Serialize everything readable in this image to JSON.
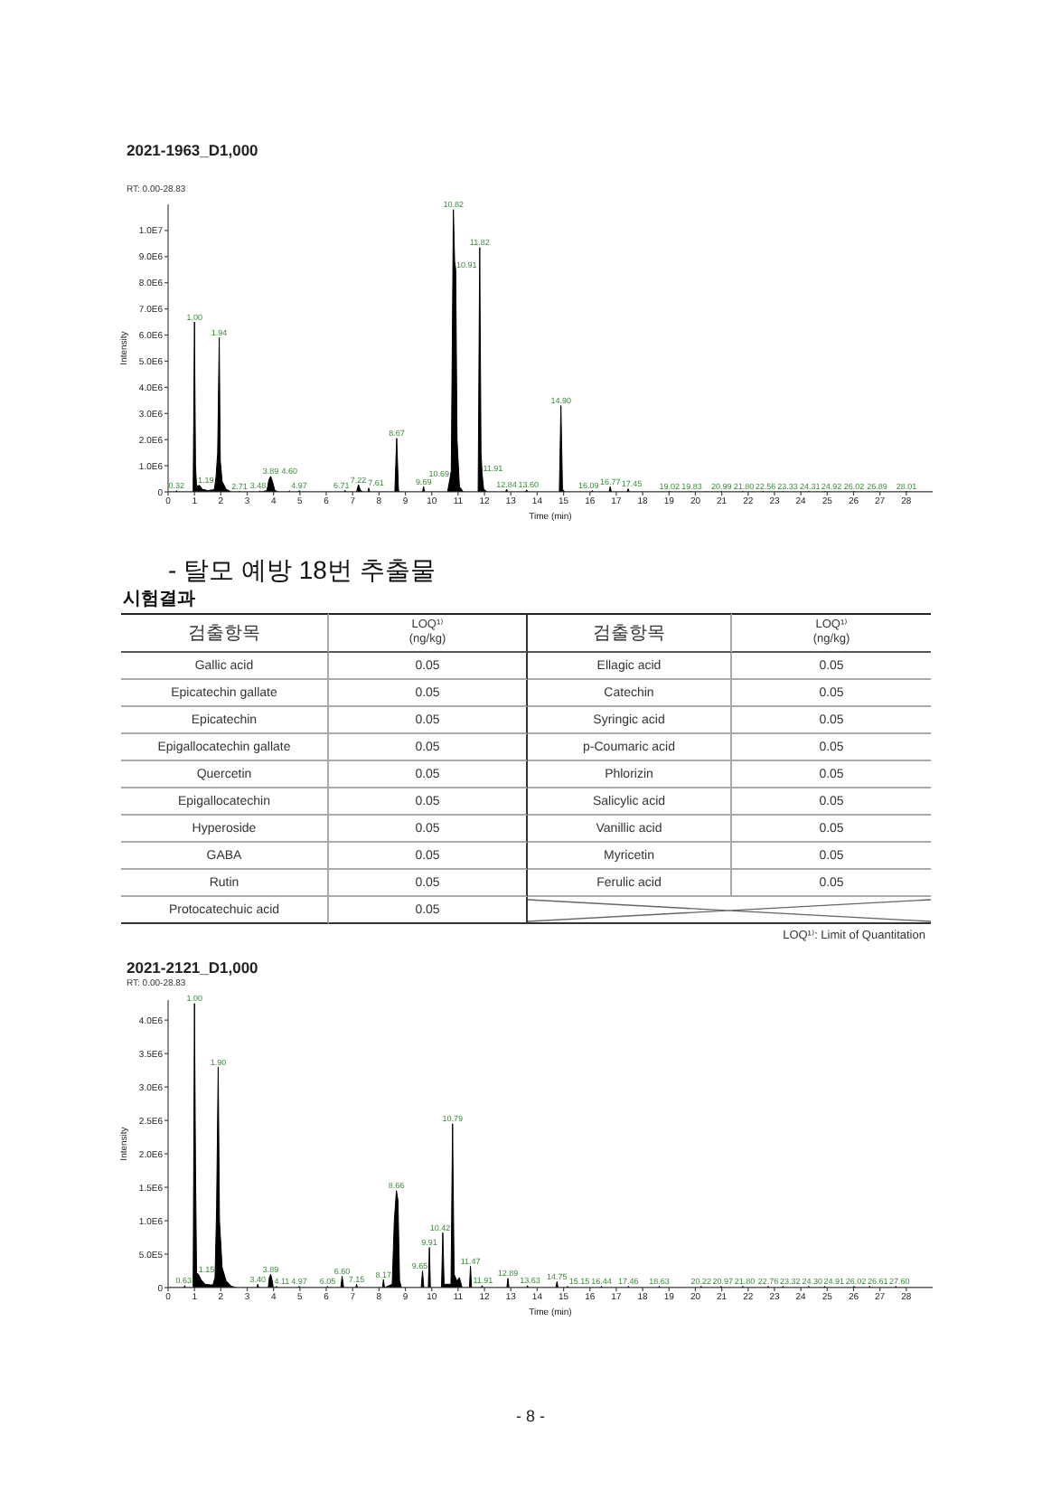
{
  "chart_data": [
    {
      "type": "area",
      "title": "2021-1963_D1,000",
      "subtitle": "RT: 0.00-28.83",
      "xlabel": "Time (min)",
      "ylabel": "Intensity",
      "color": "#000000",
      "xlim": [
        0,
        29
      ],
      "ylim": [
        0,
        11000000
      ],
      "xticks": [
        0,
        1,
        2,
        3,
        4,
        5,
        6,
        7,
        8,
        9,
        10,
        11,
        12,
        13,
        14,
        15,
        16,
        17,
        18,
        19,
        20,
        21,
        22,
        23,
        24,
        25,
        26,
        27,
        28
      ],
      "yticks": [
        0,
        {
          "value": 1000000,
          "label": "1.0E6"
        },
        {
          "value": 2000000,
          "label": "2.0E6"
        },
        {
          "value": 3000000,
          "label": "3.0E6"
        },
        {
          "value": 4000000,
          "label": "4.0E6"
        },
        {
          "value": 5000000,
          "label": "5.0E6"
        },
        {
          "value": 6000000,
          "label": "6.0E6"
        },
        {
          "value": 7000000,
          "label": "7.0E6"
        },
        {
          "value": 8000000,
          "label": "8.0E6"
        },
        {
          "value": 9000000,
          "label": "9.0E6"
        },
        {
          "value": 10000000,
          "label": "1.0E7"
        }
      ],
      "x": [
        0,
        0.28,
        0.32,
        0.36,
        0.95,
        1,
        1.04,
        1.08,
        1.19,
        1.3,
        1.5,
        1.7,
        1.76,
        1.82,
        1.88,
        1.94,
        1.98,
        2.05,
        2.2,
        2.4,
        2.68,
        2.71,
        2.75,
        3.45,
        3.48,
        3.52,
        3.75,
        3.82,
        3.89,
        3.96,
        4.05,
        4.2,
        4.57,
        4.6,
        4.64,
        4.94,
        4.97,
        5,
        6.68,
        6.71,
        6.75,
        7.15,
        7.22,
        7.3,
        7.4,
        7.58,
        7.61,
        7.65,
        8.6,
        8.67,
        8.74,
        8.8,
        9.65,
        9.69,
        9.73,
        10.6,
        10.69,
        10.74,
        10.82,
        10.87,
        10.91,
        10.96,
        11.05,
        11.2,
        11.76,
        11.82,
        11.87,
        11.91,
        11.97,
        12.1,
        12.8,
        12.84,
        12.88,
        13.56,
        13.6,
        13.64,
        14.84,
        14.9,
        14.96,
        15.05,
        16.05,
        16.09,
        16.13,
        16.73,
        16.77,
        16.81,
        17.41,
        17.45,
        17.49,
        18.99,
        19.02,
        19.05,
        19.8,
        19.83,
        19.86,
        20.96,
        20.99,
        21.02,
        21.77,
        21.8,
        21.83,
        22.53,
        22.56,
        22.59,
        23.3,
        23.33,
        23.36,
        24.28,
        24.31,
        24.34,
        24.89,
        24.92,
        24.95,
        25.99,
        26.02,
        26.05,
        26.86,
        26.89,
        26.92,
        27.98,
        28.01,
        28.04,
        29
      ],
      "values": [
        0,
        0,
        50000,
        0,
        0,
        6500000,
        1000000,
        220000,
        250000,
        100000,
        50000,
        80000,
        120000,
        600000,
        1500000,
        5900000,
        1200000,
        400000,
        100000,
        0,
        0,
        30000,
        0,
        0,
        40000,
        0,
        50000,
        450000,
        600000,
        400000,
        50000,
        0,
        0,
        40000,
        0,
        0,
        50000,
        0,
        0,
        60000,
        0,
        0,
        280000,
        50000,
        0,
        0,
        150000,
        0,
        0,
        2050000,
        50000,
        0,
        0,
        200000,
        0,
        0,
        500000,
        800000,
        10800000,
        8800000,
        8500000,
        2000000,
        200000,
        0,
        0,
        9350000,
        1500000,
        700000,
        100000,
        0,
        0,
        100000,
        0,
        0,
        80000,
        0,
        0,
        3300000,
        100000,
        0,
        0,
        50000,
        0,
        0,
        200000,
        0,
        0,
        120000,
        0,
        0,
        30000,
        0,
        0,
        30000,
        0,
        0,
        30000,
        0,
        0,
        30000,
        0,
        0,
        30000,
        0,
        0,
        30000,
        0,
        0,
        30000,
        0,
        0,
        30000,
        0,
        0,
        30000,
        0,
        0,
        30000,
        0,
        0,
        30000,
        0,
        0
      ],
      "annotations": [
        {
          "text": "0.32",
          "x": 0.32,
          "y": 50000
        },
        {
          "text": "1.00",
          "x": 1,
          "y": 6500000
        },
        {
          "text": "1.19",
          "x": 1.19,
          "y": 250000
        },
        {
          "text": "1.94",
          "x": 1.94,
          "y": 5900000
        },
        {
          "text": "2.71",
          "x": 2.71,
          "y": 30000
        },
        {
          "text": "3.48",
          "x": 3.48,
          "y": 40000
        },
        {
          "text": "3.89",
          "x": 3.89,
          "y": 600000
        },
        {
          "text": "4.60",
          "x": 4.6,
          "y": 40000
        },
        {
          "text": "4.97",
          "x": 4.97,
          "y": 50000
        },
        {
          "text": "6.71",
          "x": 6.71,
          "y": 60000
        },
        {
          "text": "7.22",
          "x": 7.22,
          "y": 280000
        },
        {
          "text": "7.61",
          "x": 7.61,
          "y": 150000
        },
        {
          "text": "8.67",
          "x": 8.67,
          "y": 2050000
        },
        {
          "text": "9.69",
          "x": 9.69,
          "y": 200000
        },
        {
          "text": "10.69",
          "x": 10.69,
          "y": 500000
        },
        {
          "text": "10.82",
          "x": 10.82,
          "y": 10800000
        },
        {
          "text": "10.91",
          "x": 10.91,
          "y": 8500000
        },
        {
          "text": "11.82",
          "x": 11.82,
          "y": 9350000
        },
        {
          "text": "11.91",
          "x": 11.91,
          "y": 700000
        },
        {
          "text": "12.84",
          "x": 12.84,
          "y": 100000
        },
        {
          "text": "13.60",
          "x": 13.6,
          "y": 80000
        },
        {
          "text": "14.90",
          "x": 14.9,
          "y": 3300000
        },
        {
          "text": "16.09",
          "x": 16.09,
          "y": 50000
        },
        {
          "text": "16.77",
          "x": 16.77,
          "y": 200000
        },
        {
          "text": "17.45",
          "x": 17.45,
          "y": 120000
        },
        {
          "text": "19.02",
          "x": 19.02,
          "y": 30000
        },
        {
          "text": "19.83",
          "x": 19.83,
          "y": 30000
        },
        {
          "text": "20.99",
          "x": 20.99,
          "y": 30000
        },
        {
          "text": "21.80",
          "x": 21.8,
          "y": 30000
        },
        {
          "text": "22.56",
          "x": 22.56,
          "y": 30000
        },
        {
          "text": "23.33",
          "x": 23.33,
          "y": 30000
        },
        {
          "text": "24.31",
          "x": 24.31,
          "y": 30000
        },
        {
          "text": "24.92",
          "x": 24.92,
          "y": 30000
        },
        {
          "text": "26.02",
          "x": 26.02,
          "y": 30000
        },
        {
          "text": "26.89",
          "x": 26.89,
          "y": 30000
        },
        {
          "text": "28.01",
          "x": 28.01,
          "y": 30000
        }
      ]
    },
    {
      "type": "other",
      "title": "- 탈모 예방 18번 추출물",
      "subtitle": "시험결과",
      "xlabel": "검출항목",
      "ylabel": "LOQ¹⁾\n(ng/kg)",
      "annotations": [
        "Gallic acid",
        "0.05",
        "Ellagic acid",
        "0.05",
        "Epicatechin gallate",
        "0.05",
        "Catechin",
        "0.05",
        "Epicatechin",
        "0.05",
        "Syringic acid",
        "0.05",
        "Epigallocatechin gallate",
        "0.05",
        "p-Coumaric acid",
        "0.05",
        "Quercetin",
        "0.05",
        "Phlorizin",
        "0.05",
        "Epigallocatechin",
        "0.05",
        "Salicylic acid",
        "0.05",
        "Hyperoside",
        "0.05",
        "Vanillic acid",
        "0.05",
        "GABA",
        "0.05",
        "Myricetin",
        "0.05",
        "Rutin",
        "0.05",
        "Ferulic acid",
        "0.05",
        "Protocatechuic acid",
        "0.05",
        "LOQ¹⁾: Limit of Quantitation"
      ]
    },
    {
      "type": "area",
      "title": "2021-2121_D1,000",
      "subtitle": "RT: 0.00-28.83",
      "xlabel": "Time (min)",
      "ylabel": "Intensity",
      "color": "#000000",
      "xlim": [
        0,
        29
      ],
      "ylim": [
        0,
        4300000
      ],
      "xticks": [
        0,
        1,
        2,
        3,
        4,
        5,
        6,
        7,
        8,
        9,
        10,
        11,
        12,
        13,
        14,
        15,
        16,
        17,
        18,
        19,
        20,
        21,
        22,
        23,
        24,
        25,
        26,
        27,
        28
      ],
      "yticks": [
        0,
        {
          "value": 500000,
          "label": "5.0E5"
        },
        {
          "value": 1000000,
          "label": "1.0E6"
        },
        {
          "value": 1500000,
          "label": "1.5E6"
        },
        {
          "value": 2000000,
          "label": "2.0E6"
        },
        {
          "value": 2500000,
          "label": "2.5E6"
        },
        {
          "value": 3000000,
          "label": "3.0E6"
        },
        {
          "value": 3500000,
          "label": "3.5E6"
        },
        {
          "value": 4000000,
          "label": "4.0E6"
        }
      ],
      "x": [
        0,
        0.6,
        0.63,
        0.66,
        0.95,
        1,
        1.04,
        1.08,
        1.15,
        1.25,
        1.4,
        1.6,
        1.7,
        1.78,
        1.84,
        1.9,
        1.95,
        2.05,
        2.2,
        2.4,
        2.6,
        3.37,
        3.4,
        3.44,
        3.8,
        3.84,
        3.89,
        3.94,
        3.99,
        4.08,
        4.11,
        4.14,
        4.94,
        4.97,
        5,
        6.02,
        6.05,
        6.08,
        6.55,
        6.6,
        6.66,
        7.12,
        7.15,
        7.18,
        8.13,
        8.17,
        8.21,
        8.5,
        8.58,
        8.66,
        8.72,
        8.78,
        8.85,
        9.6,
        9.65,
        9.7,
        9.87,
        9.91,
        9.95,
        10.37,
        10.42,
        10.47,
        10.73,
        10.79,
        10.85,
        10.95,
        11.05,
        11.15,
        11.43,
        11.47,
        11.51,
        11.88,
        11.91,
        11.94,
        12.85,
        12.89,
        12.93,
        13.6,
        13.63,
        13.66,
        14.71,
        14.75,
        14.79,
        15.12,
        15.15,
        15.18,
        16.41,
        16.44,
        16.47,
        17.43,
        17.46,
        17.49,
        18.6,
        18.63,
        18.66,
        20.19,
        20.22,
        20.25,
        20.94,
        20.97,
        21,
        21.77,
        21.8,
        21.83,
        22.73,
        22.76,
        22.79,
        23.29,
        23.32,
        23.35,
        24.27,
        24.3,
        24.33,
        24.88,
        24.91,
        24.94,
        25.99,
        26.02,
        26.05,
        26.58,
        26.61,
        26.64,
        27.57,
        27.6,
        27.63,
        29
      ],
      "values": [
        0,
        0,
        30000,
        0,
        0,
        4250000,
        1800000,
        220000,
        200000,
        120000,
        50000,
        40000,
        40000,
        150000,
        1200000,
        3300000,
        1000000,
        300000,
        100000,
        20000,
        0,
        0,
        50000,
        0,
        0,
        150000,
        200000,
        120000,
        0,
        0,
        20000,
        0,
        0,
        20000,
        0,
        0,
        20000,
        0,
        0,
        170000,
        0,
        0,
        50000,
        0,
        0,
        120000,
        0,
        50000,
        1000000,
        1450000,
        1300000,
        100000,
        0,
        0,
        250000,
        0,
        0,
        600000,
        0,
        0,
        820000,
        50000,
        50000,
        2450000,
        200000,
        100000,
        150000,
        0,
        0,
        320000,
        0,
        0,
        30000,
        0,
        0,
        140000,
        0,
        0,
        30000,
        0,
        0,
        90000,
        0,
        0,
        20000,
        0,
        0,
        20000,
        0,
        0,
        20000,
        0,
        0,
        20000,
        0,
        0,
        20000,
        0,
        0,
        20000,
        0,
        0,
        20000,
        0,
        0,
        20000,
        0,
        0,
        20000,
        0,
        0,
        20000,
        0,
        0,
        20000,
        0,
        0,
        20000,
        0,
        0,
        20000,
        0,
        0,
        20000,
        0,
        0
      ],
      "annotations": [
        {
          "text": "0.63",
          "x": 0.63,
          "y": 30000
        },
        {
          "text": "1.00",
          "x": 1,
          "y": 4250000
        },
        {
          "text": "1.15",
          "x": 1.15,
          "y": 200000
        },
        {
          "text": "1.90",
          "x": 1.9,
          "y": 3300000
        },
        {
          "text": "3.40",
          "x": 3.4,
          "y": 50000
        },
        {
          "text": "3.89",
          "x": 3.89,
          "y": 200000
        },
        {
          "text": "4.11",
          "x": 4.11,
          "y": 20000
        },
        {
          "text": "4.97",
          "x": 4.97,
          "y": 20000
        },
        {
          "text": "6.05",
          "x": 6.05,
          "y": 20000
        },
        {
          "text": "6.60",
          "x": 6.6,
          "y": 170000
        },
        {
          "text": "7.15",
          "x": 7.15,
          "y": 50000
        },
        {
          "text": "8.17",
          "x": 8.17,
          "y": 120000
        },
        {
          "text": "8.66",
          "x": 8.66,
          "y": 1450000
        },
        {
          "text": "9.65",
          "x": 9.65,
          "y": 250000
        },
        {
          "text": "9.91",
          "x": 9.91,
          "y": 600000
        },
        {
          "text": "10.42",
          "x": 10.42,
          "y": 820000
        },
        {
          "text": "10.79",
          "x": 10.79,
          "y": 2450000
        },
        {
          "text": "11.47",
          "x": 11.47,
          "y": 320000
        },
        {
          "text": "11.91",
          "x": 11.91,
          "y": 30000
        },
        {
          "text": "12.89",
          "x": 12.89,
          "y": 140000
        },
        {
          "text": "13.63",
          "x": 13.63,
          "y": 30000
        },
        {
          "text": "14.75",
          "x": 14.75,
          "y": 90000
        },
        {
          "text": "15.15",
          "x": 15.15,
          "y": 20000
        },
        {
          "text": "16.44",
          "x": 16.44,
          "y": 20000
        },
        {
          "text": "17.46",
          "x": 17.46,
          "y": 20000
        },
        {
          "text": "18.63",
          "x": 18.63,
          "y": 20000
        },
        {
          "text": "20.22",
          "x": 20.22,
          "y": 20000
        },
        {
          "text": "20.97",
          "x": 20.97,
          "y": 20000
        },
        {
          "text": "21.80",
          "x": 21.8,
          "y": 20000
        },
        {
          "text": "22.76",
          "x": 22.76,
          "y": 20000
        },
        {
          "text": "23.32",
          "x": 23.32,
          "y": 20000
        },
        {
          "text": "24.30",
          "x": 24.3,
          "y": 20000
        },
        {
          "text": "24.91",
          "x": 24.91,
          "y": 20000
        },
        {
          "text": "26.02",
          "x": 26.02,
          "y": 20000
        },
        {
          "text": "26.61",
          "x": 26.61,
          "y": 20000
        },
        {
          "text": "27.60",
          "x": 27.6,
          "y": 20000
        },
        "- 8 -"
      ]
    }
  ]
}
